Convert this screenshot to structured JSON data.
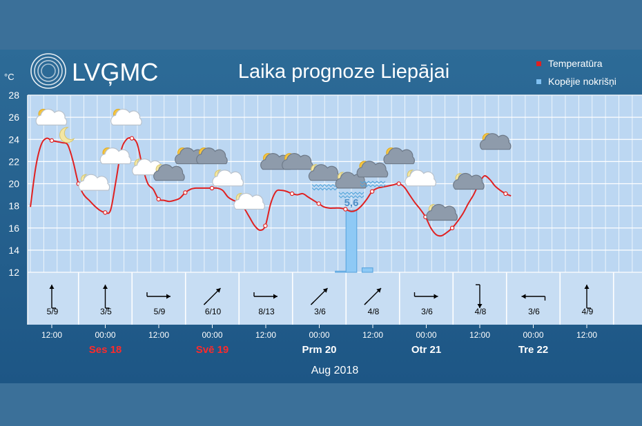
{
  "logo": {
    "text": "LVĢMC"
  },
  "title": "Laika prognoze Liepājai",
  "legend": {
    "temperature": {
      "label": "Temperatūra",
      "color": "#e02020"
    },
    "precipitation": {
      "label": "Kopējie nokrišņi",
      "color": "#7fc0f2"
    }
  },
  "footer": {
    "month": "Aug 2018"
  },
  "chart_data": {
    "type": "line",
    "title": "Laika prognoze Liepājai",
    "y_unit": "°C",
    "ylim": [
      12,
      28
    ],
    "y_ticks": [
      "12",
      "14",
      "16",
      "18",
      "20",
      "22",
      "24",
      "26",
      "28"
    ],
    "grid": true,
    "legend_position": "top-right",
    "time_range_hours": [
      -4,
      106
    ],
    "x_tick_hours": [
      0,
      12,
      24,
      36,
      48,
      60,
      72,
      84,
      96,
      108,
      120,
      132,
      144,
      156
    ],
    "x_tick_labels": [
      "12:00",
      "00:00",
      "12:00",
      "00:00",
      "12:00",
      "00:00",
      "12:00",
      "00:00",
      "12:00",
      "00:00",
      "12:00"
    ],
    "x_tick_label_hours": [
      0,
      10,
      20,
      30,
      40,
      50,
      60,
      70,
      80,
      90,
      100
    ],
    "day_labels": [
      {
        "label": "Ses 18",
        "hour": 10,
        "weekend": true
      },
      {
        "label": "Svē 19",
        "hour": 30,
        "weekend": true
      },
      {
        "label": "Prm 20",
        "hour": 50,
        "weekend": false
      },
      {
        "label": "Otr 21",
        "hour": 70,
        "weekend": false
      },
      {
        "label": "Tre 22",
        "hour": 90,
        "weekend": false
      }
    ],
    "series": [
      {
        "name": "Temperatūra",
        "type": "line",
        "points": [
          [
            -4,
            17.9
          ],
          [
            -3,
            21.5
          ],
          [
            -2,
            23.5
          ],
          [
            -1,
            24.1
          ],
          [
            0,
            23.9
          ],
          [
            1,
            23.8
          ],
          [
            2,
            23.7
          ],
          [
            3,
            23.5
          ],
          [
            4,
            22.0
          ],
          [
            5,
            20.0
          ],
          [
            6,
            19.0
          ],
          [
            7,
            18.5
          ],
          [
            8,
            18.0
          ],
          [
            9,
            17.6
          ],
          [
            10,
            17.4
          ],
          [
            11,
            17.6
          ],
          [
            12,
            20.2
          ],
          [
            13,
            23.0
          ],
          [
            14,
            24.0
          ],
          [
            15,
            24.1
          ],
          [
            16,
            23.6
          ],
          [
            17,
            21.5
          ],
          [
            18,
            20.0
          ],
          [
            19,
            19.5
          ],
          [
            20,
            18.6
          ],
          [
            21,
            18.5
          ],
          [
            22,
            18.4
          ],
          [
            23,
            18.5
          ],
          [
            24,
            18.7
          ],
          [
            25,
            19.2
          ],
          [
            26,
            19.5
          ],
          [
            27,
            19.6
          ],
          [
            28,
            19.6
          ],
          [
            29,
            19.6
          ],
          [
            30,
            19.6
          ],
          [
            31,
            19.6
          ],
          [
            32,
            19.4
          ],
          [
            33,
            18.8
          ],
          [
            34,
            18.5
          ],
          [
            35,
            18.3
          ],
          [
            36,
            17.8
          ],
          [
            37,
            17.0
          ],
          [
            38,
            16.2
          ],
          [
            39,
            15.8
          ],
          [
            40,
            16.2
          ],
          [
            41,
            18.2
          ],
          [
            42,
            19.3
          ],
          [
            43,
            19.4
          ],
          [
            44,
            19.3
          ],
          [
            45,
            19.1
          ],
          [
            46,
            19.0
          ],
          [
            47,
            19.1
          ],
          [
            48,
            18.8
          ],
          [
            49,
            18.5
          ],
          [
            50,
            18.2
          ],
          [
            51,
            17.9
          ],
          [
            52,
            17.8
          ],
          [
            53,
            17.8
          ],
          [
            54,
            17.8
          ],
          [
            55,
            17.7
          ],
          [
            56,
            17.5
          ],
          [
            57,
            17.6
          ],
          [
            58,
            18.0
          ],
          [
            59,
            18.6
          ],
          [
            60,
            19.3
          ],
          [
            61,
            19.6
          ],
          [
            62,
            19.7
          ],
          [
            63,
            19.8
          ],
          [
            64,
            19.9
          ],
          [
            65,
            20.0
          ],
          [
            66,
            19.7
          ],
          [
            67,
            19.0
          ],
          [
            68,
            18.3
          ],
          [
            69,
            17.7
          ],
          [
            70,
            17.0
          ],
          [
            71,
            16.0
          ],
          [
            72,
            15.4
          ],
          [
            73,
            15.3
          ],
          [
            74,
            15.6
          ],
          [
            75,
            16.0
          ],
          [
            76,
            16.6
          ],
          [
            77,
            17.3
          ],
          [
            78,
            18.2
          ],
          [
            79,
            19.0
          ],
          [
            80,
            20.0
          ],
          [
            81,
            20.7
          ],
          [
            82,
            20.4
          ],
          [
            83,
            19.8
          ],
          [
            84,
            19.4
          ],
          [
            85,
            19.1
          ],
          [
            86,
            18.9
          ]
        ],
        "markers_every_hours": 2,
        "color": "#e02020"
      },
      {
        "name": "Kopējie nokrišņi",
        "type": "bar",
        "bars": [
          {
            "hour_start": 53,
            "hour_end": 55,
            "value": 0.1
          },
          {
            "hour_start": 55,
            "hour_end": 57,
            "value": 5.6,
            "label": "5,6"
          },
          {
            "hour_start": 58,
            "hour_end": 60,
            "value": 0.4
          }
        ],
        "color": "#7fc0f2"
      }
    ],
    "weather_icons": [
      {
        "hour": 0,
        "temp": 25.8,
        "icon": "sun-cloud-icon"
      },
      {
        "hour": 3,
        "temp": 24.4,
        "icon": "moon-icon"
      },
      {
        "hour": 8,
        "temp": 19.9,
        "icon": "moon-cloud-icon"
      },
      {
        "hour": 12,
        "temp": 22.3,
        "icon": "sun-cloud-icon"
      },
      {
        "hour": 14,
        "temp": 25.8,
        "icon": "sun-cloud-icon"
      },
      {
        "hour": 18,
        "temp": 21.3,
        "icon": "moon-cloud-icon"
      },
      {
        "hour": 22,
        "temp": 20.8,
        "icon": "moon-cloud-dark-icon"
      },
      {
        "hour": 26,
        "temp": 22.3,
        "icon": "sun-cloud-dark-icon"
      },
      {
        "hour": 30,
        "temp": 22.3,
        "icon": "sun-cloud-dark-icon"
      },
      {
        "hour": 33,
        "temp": 20.3,
        "icon": "moon-cloud-icon"
      },
      {
        "hour": 37,
        "temp": 18.2,
        "icon": "moon-cloud-icon"
      },
      {
        "hour": 42,
        "temp": 21.8,
        "icon": "sun-cloud-dark-icon"
      },
      {
        "hour": 46,
        "temp": 21.8,
        "icon": "sun-cloud-dark-icon"
      },
      {
        "hour": 51,
        "temp": 20.8,
        "icon": "moon-cloud-rain-icon"
      },
      {
        "hour": 56,
        "temp": 20.1,
        "icon": "moon-cloud-rain-icon"
      },
      {
        "hour": 60,
        "temp": 21.1,
        "icon": "sun-cloud-rain-icon"
      },
      {
        "hour": 65,
        "temp": 22.3,
        "icon": "sun-cloud-dark-icon"
      },
      {
        "hour": 69,
        "temp": 20.3,
        "icon": "moon-cloud-icon"
      },
      {
        "hour": 73,
        "temp": 17.2,
        "icon": "moon-cloud-dark-icon"
      },
      {
        "hour": 78,
        "temp": 20.0,
        "icon": "moon-cloud-dark-icon"
      },
      {
        "hour": 83,
        "temp": 23.6,
        "icon": "sun-cloud-dark-icon"
      }
    ],
    "wind": [
      {
        "hour": 0,
        "label": "5/9",
        "dir": 270
      },
      {
        "hour": 10,
        "label": "3/5",
        "dir": 270
      },
      {
        "hour": 20,
        "label": "5/9",
        "dir": 180
      },
      {
        "hour": 30,
        "label": "6/10",
        "dir": 225
      },
      {
        "hour": 40,
        "label": "8/13",
        "dir": 180
      },
      {
        "hour": 50,
        "label": "3/6",
        "dir": 225
      },
      {
        "hour": 60,
        "label": "4/8",
        "dir": 225
      },
      {
        "hour": 70,
        "label": "3/6",
        "dir": 180
      },
      {
        "hour": 80,
        "label": "4/8",
        "dir": 90
      },
      {
        "hour": 90,
        "label": "3/6",
        "dir": 0
      },
      {
        "hour": 100,
        "label": "4/9",
        "dir": 270
      }
    ]
  }
}
